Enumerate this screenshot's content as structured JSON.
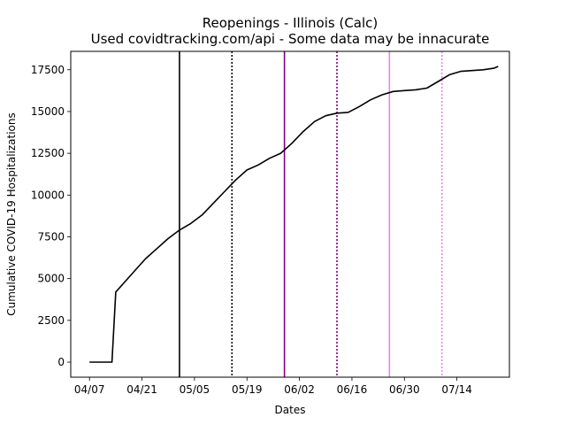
{
  "chart_data": {
    "type": "line",
    "title": "Reopenings - Illinois (Calc)",
    "subtitle": "Used covidtracking.com/api - Some data may be innacurate",
    "xlabel": "Dates",
    "ylabel": "Cumulative COVID-19 Hospitalizations",
    "x_ticks": [
      "04/07",
      "04/21",
      "05/05",
      "05/19",
      "06/02",
      "06/16",
      "06/30",
      "07/14"
    ],
    "x_tick_dates": [
      "2020-04-07",
      "2020-04-21",
      "2020-05-05",
      "2020-05-19",
      "2020-06-02",
      "2020-06-16",
      "2020-06-30",
      "2020-07-14"
    ],
    "y_ticks": [
      0,
      2500,
      5000,
      7500,
      10000,
      12500,
      15000,
      17500
    ],
    "xlim": [
      "2020-04-02",
      "2020-07-28"
    ],
    "ylim": [
      -900,
      18600
    ],
    "grid": false,
    "line_color": "#000000",
    "series": [
      {
        "color": "#000000",
        "x": [
          "2020-04-07",
          "2020-04-10",
          "2020-04-13",
          "2020-04-14",
          "2020-04-17",
          "2020-04-20",
          "2020-04-22",
          "2020-04-25",
          "2020-04-28",
          "2020-05-01",
          "2020-05-04",
          "2020-05-07",
          "2020-05-10",
          "2020-05-13",
          "2020-05-16",
          "2020-05-19",
          "2020-05-22",
          "2020-05-25",
          "2020-05-28",
          "2020-05-31",
          "2020-06-03",
          "2020-06-06",
          "2020-06-09",
          "2020-06-12",
          "2020-06-15",
          "2020-06-18",
          "2020-06-21",
          "2020-06-24",
          "2020-06-27",
          "2020-06-30",
          "2020-07-03",
          "2020-07-06",
          "2020-07-09",
          "2020-07-12",
          "2020-07-15",
          "2020-07-18",
          "2020-07-21",
          "2020-07-24",
          "2020-07-25"
        ],
        "y": [
          0,
          0,
          0,
          4200,
          4950,
          5700,
          6200,
          6800,
          7400,
          7900,
          8300,
          8800,
          9500,
          10200,
          10900,
          11500,
          11800,
          12200,
          12500,
          13100,
          13800,
          14400,
          14750,
          14900,
          14950,
          15300,
          15700,
          16000,
          16200,
          16250,
          16300,
          16400,
          16800,
          17200,
          17400,
          17450,
          17500,
          17600,
          17700
        ]
      }
    ],
    "vlines": [
      {
        "date": "2020-05-01",
        "color": "#000000",
        "style": "solid"
      },
      {
        "date": "2020-05-15",
        "color": "#000000",
        "style": "dotted"
      },
      {
        "date": "2020-05-29",
        "color": "#800080",
        "style": "solid"
      },
      {
        "date": "2020-06-12",
        "color": "#800080",
        "style": "dotted"
      },
      {
        "date": "2020-06-26",
        "color": "#ee82ee",
        "style": "solid"
      },
      {
        "date": "2020-07-10",
        "color": "#ee82ee",
        "style": "dotted"
      }
    ]
  }
}
